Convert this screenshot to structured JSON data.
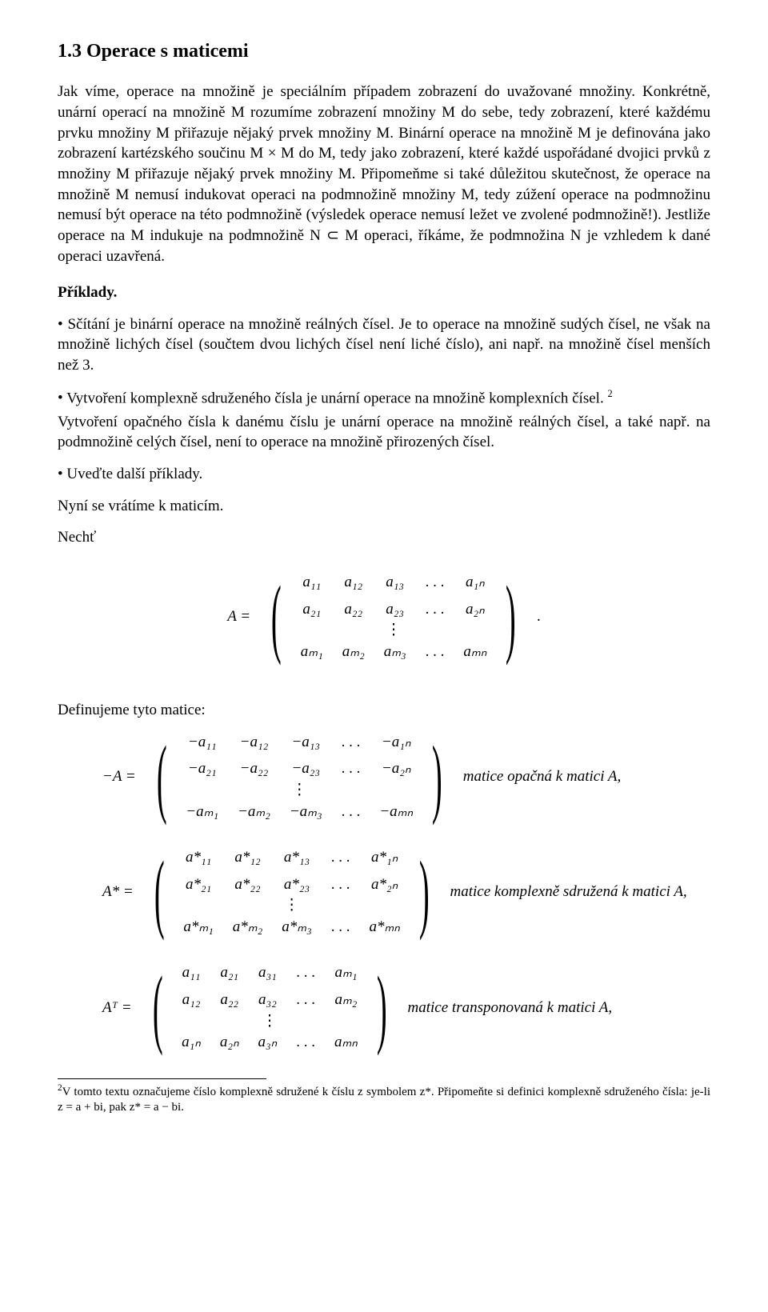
{
  "heading": "1.3   Operace s maticemi",
  "para1": "Jak víme, operace na množině je speciálním případem zobrazení do uvažované množiny. Konkrétně, unární operací na množině M rozumíme zobrazení množiny M do sebe, tedy zobrazení, které každému prvku množiny M přiřazuje nějaký prvek množiny M. Binární operace na množině M je definována jako zobrazení kartézského součinu M × M do M, tedy jako zobrazení, které každé uspořádané dvojici prvků z množiny M přiřazuje nějaký prvek množiny M. Připomeňme si také důležitou skutečnost, že operace na množině M nemusí indukovat operaci na podmnožině množiny M, tedy zúžení operace na podmnožinu nemusí být operace na této podmnožině (výsledek operace nemusí ležet ve zvolené podmnožině!). Jestliže operace na M indukuje na podmnožině N ⊂ M operaci, říkáme, že podmnožina N je vzhledem k dané operaci uzavřená.",
  "examples_label": "Příklady.",
  "ex1": "Sčítání je binární operace na množině reálných čísel. Je to operace na množině sudých čísel, ne však na množině lichých čísel (součtem dvou lichých čísel není liché číslo), ani např. na množině čísel menších než 3.",
  "ex2_a": "Vytvoření komplexně sdruženého čísla je unární operace na množině komplexních čísel. ",
  "ex2_fn": "2",
  "ex2_b": "Vytvoření opačného čísla k danému číslu je unární operace na množině reálných čísel, a také např. na podmnožině celých čísel, není to operace na množině přirozených čísel.",
  "ex3": "Uveďte další příklady.",
  "back": "Nyní se vrátíme k maticím.",
  "let": "Nechť",
  "def_label": "Definujeme tyto matice:",
  "lhs_A": "A =",
  "lhs_minusA": "−A =",
  "lhs_Astar": "A* =",
  "lhs_AT": "Aᵀ =",
  "label_neg": "matice opačná k matici A,",
  "label_conj": "matice komplexně sdružená k matici A,",
  "label_trans": "matice transponovaná k matici A,",
  "matA": {
    "r1": [
      "a₁₁",
      "a₁₂",
      "a₁₃",
      ". . .",
      "a₁ₙ"
    ],
    "r2": [
      "a₂₁",
      "a₂₂",
      "a₂₃",
      ". . .",
      "a₂ₙ"
    ],
    "r3": [
      "aₘ₁",
      "aₘ₂",
      "aₘ₃",
      ". . .",
      "aₘₙ"
    ]
  },
  "matNeg": {
    "r1": [
      "−a₁₁",
      "−a₁₂",
      "−a₁₃",
      ". . .",
      "−a₁ₙ"
    ],
    "r2": [
      "−a₂₁",
      "−a₂₂",
      "−a₂₃",
      ". . .",
      "−a₂ₙ"
    ],
    "r3": [
      "−aₘ₁",
      "−aₘ₂",
      "−aₘ₃",
      ". . .",
      "−aₘₙ"
    ]
  },
  "matStar": {
    "r1": [
      "a*₁₁",
      "a*₁₂",
      "a*₁₃",
      ". . .",
      "a*₁ₙ"
    ],
    "r2": [
      "a*₂₁",
      "a*₂₂",
      "a*₂₃",
      ". . .",
      "a*₂ₙ"
    ],
    "r3": [
      "a*ₘ₁",
      "a*ₘ₂",
      "a*ₘ₃",
      ". . .",
      "a*ₘₙ"
    ]
  },
  "matT": {
    "r1": [
      "a₁₁",
      "a₂₁",
      "a₃₁",
      ". . .",
      "aₘ₁"
    ],
    "r2": [
      "a₁₂",
      "a₂₂",
      "a₃₂",
      ". . .",
      "aₘ₂"
    ],
    "r3": [
      "a₁ₙ",
      "a₂ₙ",
      "a₃ₙ",
      ". . .",
      "aₘₙ"
    ]
  },
  "period": ".",
  "footnote_marker": "2",
  "footnote_text": "V tomto textu označujeme číslo komplexně sdružené k číslu z symbolem z*. Připomeňte si definici komplexně sdruženého čísla: je-li z = a + bi, pak z* = a − bi."
}
